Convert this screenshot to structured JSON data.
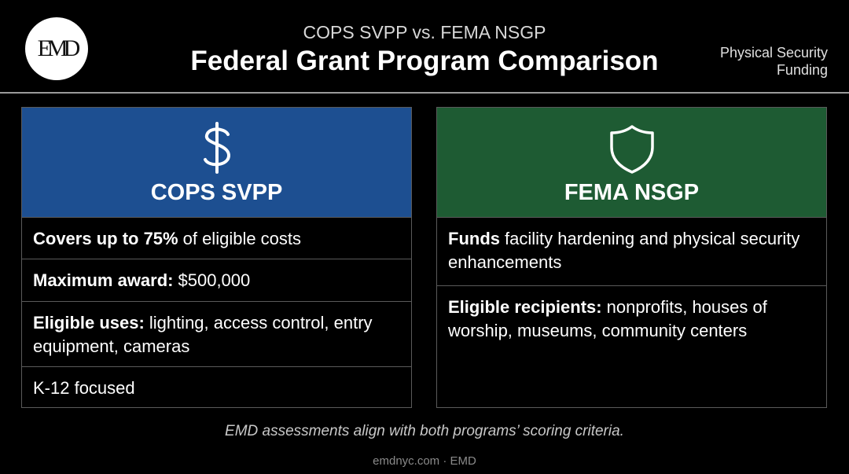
{
  "header": {
    "logo": "EMD",
    "subtitle": "COPS SVPP vs. FEMA NSGP",
    "title": "Federal Grant Program Comparison",
    "tag": "Physical Security Funding"
  },
  "cards": [
    {
      "title": "COPS SVPP",
      "rows": [
        {
          "bold": "Covers up to 75%",
          "text": "of eligible costs"
        },
        {
          "bold": "Maximum award:",
          "text": "$500,000"
        },
        {
          "bold": "Eligible uses:",
          "text": "lighting, access control, entry equipment, cameras"
        },
        {
          "text": "K-12 focused"
        }
      ]
    },
    {
      "title": "FEMA NSGP",
      "rows": [
        {
          "bold": "Funds",
          "text": "facility hardening and physical security enhancements"
        },
        {
          "bold": "Eligible recipients:",
          "text": "nonprofits, houses of worship, museums, community centers"
        }
      ]
    }
  ],
  "footer": {
    "note": "EMD assessments align with both programs’ scoring criteria.",
    "credit": "emdnyc.com · EMD"
  }
}
